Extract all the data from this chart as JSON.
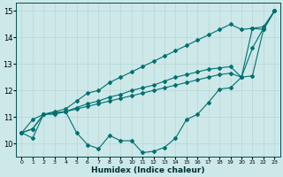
{
  "xlabel": "Humidex (Indice chaleur)",
  "xlim": [
    -0.5,
    23.5
  ],
  "ylim": [
    9.5,
    15.3
  ],
  "yticks": [
    10,
    11,
    12,
    13,
    14,
    15
  ],
  "xticks": [
    0,
    1,
    2,
    3,
    4,
    5,
    6,
    7,
    8,
    9,
    10,
    11,
    12,
    13,
    14,
    15,
    16,
    17,
    18,
    19,
    20,
    21,
    22,
    23
  ],
  "background_color": "#cce8e8",
  "grid_color": "#b8d4d4",
  "line_color": "#007070",
  "lines": [
    [
      10.4,
      10.2,
      11.1,
      11.1,
      11.2,
      10.4,
      9.95,
      9.8,
      10.3,
      10.1,
      10.1,
      9.65,
      9.7,
      9.85,
      10.2,
      10.9,
      11.1,
      11.55,
      12.05,
      12.1,
      12.5,
      14.35,
      14.3,
      15.0
    ],
    [
      10.4,
      10.55,
      11.1,
      11.15,
      11.2,
      11.3,
      11.4,
      11.5,
      11.6,
      11.7,
      11.8,
      11.9,
      12.0,
      12.1,
      12.2,
      12.3,
      12.4,
      12.5,
      12.6,
      12.65,
      12.5,
      12.55,
      14.3,
      15.0
    ],
    [
      10.4,
      10.55,
      11.1,
      11.15,
      11.2,
      11.35,
      11.5,
      11.6,
      11.75,
      11.85,
      12.0,
      12.1,
      12.2,
      12.35,
      12.5,
      12.6,
      12.7,
      12.8,
      12.85,
      12.9,
      12.5,
      13.6,
      14.35,
      15.0
    ],
    [
      10.4,
      10.9,
      11.1,
      11.2,
      11.3,
      11.6,
      11.9,
      12.0,
      12.3,
      12.5,
      12.7,
      12.9,
      13.1,
      13.3,
      13.5,
      13.7,
      13.9,
      14.1,
      14.3,
      14.5,
      14.3,
      14.35,
      14.4,
      15.0
    ]
  ]
}
